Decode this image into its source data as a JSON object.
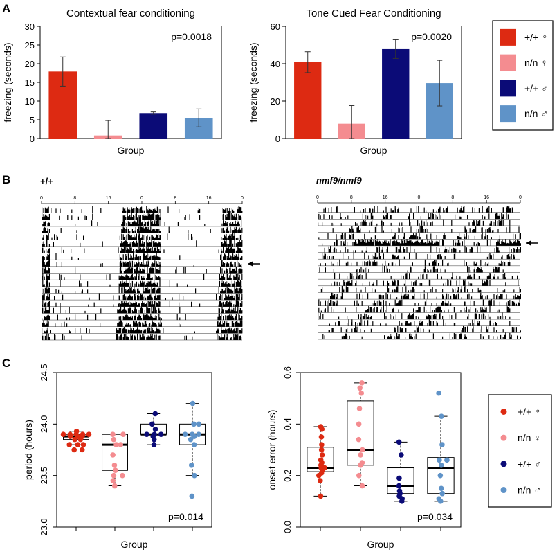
{
  "panels": {
    "A": "A",
    "B": "B",
    "C": "C"
  },
  "colors": {
    "wt_female": "#dd2a12",
    "mut_female": "#f48c90",
    "wt_male": "#0b0b77",
    "mut_male": "#5f93c8"
  },
  "legend": {
    "entries": [
      {
        "label": "+/+ ♀",
        "color_key": "wt_female"
      },
      {
        "label": "n/n ♀",
        "color_key": "mut_female"
      },
      {
        "label": "+/+ ♂",
        "color_key": "wt_male"
      },
      {
        "label": "n/n ♂",
        "color_key": "mut_male"
      }
    ]
  },
  "chart_data": [
    {
      "type": "bar",
      "id": "contextual",
      "title": "Contextual fear conditioning",
      "xlabel": "Group",
      "ylabel": "freezing (seconds)",
      "ylim": [
        0,
        30
      ],
      "yticks": [
        "0",
        "5",
        "10",
        "15",
        "20",
        "25",
        "30"
      ],
      "annotation": "p=0.0018",
      "categories": [
        "+/+ ♀",
        "n/n ♀",
        "+/+ ♂",
        "n/n ♂"
      ],
      "values": [
        17.9,
        0.8,
        6.8,
        5.5
      ],
      "error_low": [
        14.0,
        0.0,
        6.5,
        3.1
      ],
      "error_high": [
        21.8,
        4.8,
        7.1,
        7.9
      ]
    },
    {
      "type": "bar",
      "id": "tone",
      "title": "Tone Cued Fear Conditioning",
      "xlabel": "Group",
      "ylabel": "freezing (seconds)",
      "ylim": [
        0,
        60
      ],
      "yticks": [
        "0",
        "20",
        "40",
        "60"
      ],
      "annotation": "p=0.0020",
      "categories": [
        "+/+ ♀",
        "n/n ♀",
        "+/+ ♂",
        "n/n ♂"
      ],
      "values": [
        40.8,
        7.9,
        47.8,
        29.6
      ],
      "error_low": [
        35.2,
        0.0,
        42.8,
        17.4
      ],
      "error_high": [
        46.4,
        17.6,
        52.8,
        41.8
      ]
    },
    {
      "type": "actogram",
      "id": "wildtype",
      "label": "+/+",
      "tick_labels": [
        "0",
        "8",
        "16",
        "0",
        "8",
        "16",
        "0"
      ]
    },
    {
      "type": "actogram",
      "id": "mutant",
      "label": "nmf9/nmf9",
      "tick_labels": [
        "0",
        "8",
        "16",
        "0",
        "8",
        "16",
        "0"
      ]
    },
    {
      "type": "box",
      "id": "period",
      "xlabel": "Group",
      "ylabel": "period (hours)",
      "ylim": [
        23.0,
        24.5
      ],
      "yticks": [
        "23.0",
        "23.5",
        "24.0",
        "24.5"
      ],
      "annotation": "p=0.014",
      "categories": [
        "+/+ ♀",
        "n/n ♀",
        "+/+ ♂",
        "n/n ♂"
      ],
      "boxes": [
        {
          "min": 23.8,
          "q1": 23.85,
          "median": 23.88,
          "q3": 23.9,
          "max": 23.93,
          "points": [
            23.9,
            23.9,
            23.9,
            23.9,
            23.9,
            23.88,
            23.88,
            23.88,
            23.85,
            23.85,
            23.8,
            23.8,
            23.8,
            23.75,
            23.75,
            23.93
          ]
        },
        {
          "min": 23.4,
          "q1": 23.55,
          "median": 23.8,
          "q3": 23.9,
          "max": 23.9,
          "points": [
            23.9,
            23.9,
            23.85,
            23.8,
            23.8,
            23.7,
            23.6,
            23.55,
            23.5,
            23.5,
            23.45,
            23.4
          ]
        },
        {
          "min": 23.8,
          "q1": 23.9,
          "median": 23.9,
          "q3": 24.0,
          "max": 24.1,
          "points": [
            24.1,
            24.0,
            23.95,
            23.9,
            23.9,
            23.9,
            23.88,
            23.85,
            23.8
          ]
        },
        {
          "min": 23.5,
          "q1": 23.8,
          "median": 23.9,
          "q3": 24.0,
          "max": 24.2,
          "points": [
            24.2,
            24.0,
            24.0,
            23.9,
            23.9,
            23.9,
            23.88,
            23.85,
            23.8,
            23.6,
            23.5,
            23.3
          ]
        }
      ],
      "outliers": [
        null,
        null,
        null,
        [
          23.3
        ]
      ]
    },
    {
      "type": "box",
      "id": "onset",
      "xlabel": "Group",
      "ylabel": "onset error (hours)",
      "ylim": [
        0.0,
        0.6
      ],
      "yticks": [
        "0.0",
        "0.2",
        "0.4",
        "0.6"
      ],
      "annotation": "p=0.034",
      "categories": [
        "+/+ ♀",
        "n/n ♀",
        "+/+ ♂",
        "n/n ♂"
      ],
      "boxes": [
        {
          "min": 0.12,
          "q1": 0.215,
          "median": 0.23,
          "q3": 0.31,
          "max": 0.39,
          "points": [
            0.39,
            0.38,
            0.35,
            0.32,
            0.3,
            0.28,
            0.25,
            0.24,
            0.23,
            0.23,
            0.22,
            0.21,
            0.2,
            0.18,
            0.12,
            0.26
          ]
        },
        {
          "min": 0.16,
          "q1": 0.24,
          "median": 0.3,
          "q3": 0.49,
          "max": 0.56,
          "points": [
            0.56,
            0.54,
            0.52,
            0.46,
            0.4,
            0.34,
            0.3,
            0.28,
            0.25,
            0.24,
            0.2,
            0.16
          ]
        },
        {
          "min": 0.1,
          "q1": 0.13,
          "median": 0.16,
          "q3": 0.23,
          "max": 0.33,
          "points": [
            0.33,
            0.28,
            0.19,
            0.16,
            0.14,
            0.13,
            0.12,
            0.11,
            0.1
          ]
        },
        {
          "min": 0.1,
          "q1": 0.13,
          "median": 0.23,
          "q3": 0.27,
          "max": 0.43,
          "points": [
            0.52,
            0.43,
            0.32,
            0.26,
            0.26,
            0.24,
            0.2,
            0.15,
            0.13,
            0.11,
            0.1
          ]
        }
      ],
      "outliers": [
        null,
        null,
        null,
        [
          0.52
        ]
      ]
    }
  ]
}
